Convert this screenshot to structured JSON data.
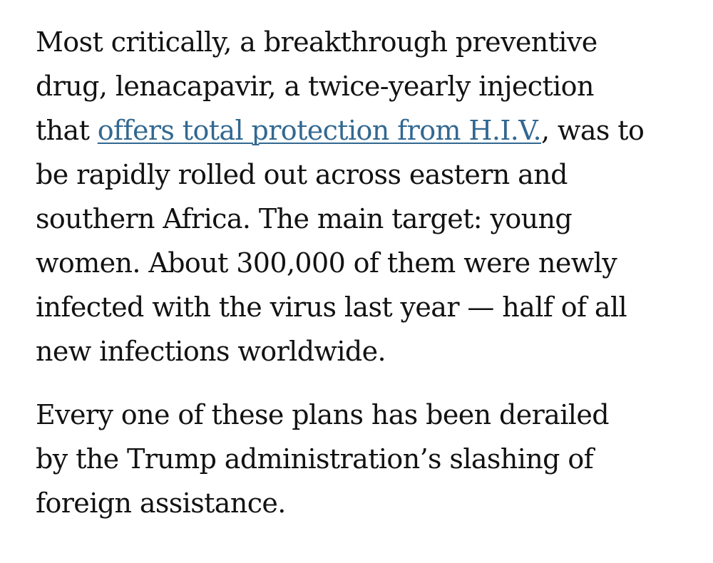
{
  "article": {
    "paragraph_1": {
      "line_1": "Most critically, a breakthrough preventive",
      "line_2": "drug, lenacapavir, a twice-yearly injection",
      "line_3_before": "that ",
      "line_3_link": "offers total protection from H.I.V.",
      "line_3_after": ", was to",
      "line_4": "be rapidly rolled out across eastern and",
      "line_5": "southern Africa. The main target: young",
      "line_6": "women. About 300,000 of them were newly",
      "line_7": "infected with the virus last year — half of all",
      "line_8": "new infections worldwide."
    },
    "paragraph_2": {
      "line_1": "Every one of these plans has been derailed",
      "line_2": "by the Trump administration’s slashing of",
      "line_3": "foreign assistance."
    }
  },
  "colors": {
    "text": "#121212",
    "link": "#326891",
    "background": "#ffffff"
  }
}
